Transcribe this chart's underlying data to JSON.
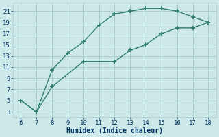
{
  "line1_x": [
    6,
    7,
    8,
    9,
    10,
    11,
    12,
    13,
    14,
    15,
    16,
    17,
    18
  ],
  "line1_y": [
    5,
    3,
    10.5,
    13.5,
    15.5,
    18.5,
    20.5,
    21.0,
    21.5,
    21.5,
    21.0,
    20.0,
    19.0
  ],
  "line2_x": [
    6,
    7,
    8,
    10,
    12,
    13,
    14,
    15,
    16,
    17,
    18
  ],
  "line2_y": [
    5,
    3,
    7.5,
    12.0,
    12.0,
    14.0,
    15.0,
    17.0,
    18.0,
    18.0,
    19.0
  ],
  "line_color": "#2e7d6e",
  "bg_color": "#cce8e8",
  "grid_color": "#aacccc",
  "xlabel": "Humidex (Indice chaleur)",
  "xlim": [
    5.5,
    18.5
  ],
  "ylim": [
    2,
    22.5
  ],
  "xticks": [
    6,
    7,
    8,
    9,
    10,
    11,
    12,
    13,
    14,
    15,
    16,
    17,
    18
  ],
  "yticks": [
    3,
    5,
    7,
    9,
    11,
    13,
    15,
    17,
    19,
    21
  ],
  "marker": "+",
  "linewidth": 1.0,
  "markersize": 4,
  "markeredgewidth": 1.2,
  "font_color": "#003366",
  "tick_fontsize": 6.5,
  "label_fontsize": 7.0
}
